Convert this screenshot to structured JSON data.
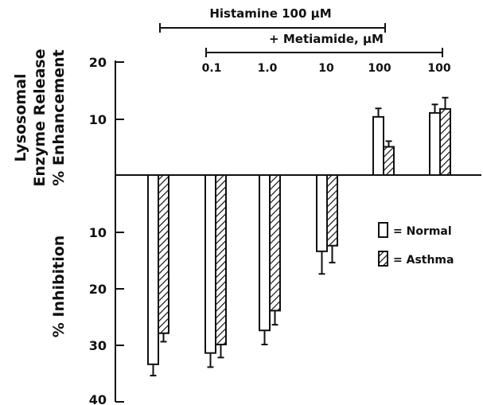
{
  "chart_data": {
    "type": "bar",
    "orientation": "vertical",
    "baseline": 0,
    "y_direction": "enhancement positive (up), inhibition negative (down)",
    "enhancement_ticks": [
      "20",
      "10"
    ],
    "inhibition_ticks": [
      "10",
      "20",
      "30",
      "40"
    ],
    "ylim": [
      -40,
      20
    ],
    "ylabel_top": [
      "Lysosomal",
      "Enzyme Release",
      "% Enhancement"
    ],
    "ylabel_bottom": "% Inhibition",
    "bracket_histamine": "Histamine  100 μM",
    "bracket_metiamide": "+ Metiamide, μM",
    "metiamide_labels": [
      "",
      "0.1",
      "1.0",
      "10",
      "100",
      "100"
    ],
    "groups": 6,
    "series": [
      {
        "name": "Normal",
        "values": [
          -33.5,
          -31.5,
          -27.5,
          -13.5,
          10.3,
          11
        ],
        "errors": [
          2,
          2.5,
          2.5,
          4,
          1.5,
          1.5
        ]
      },
      {
        "name": "Asthma",
        "values": [
          -28,
          -30,
          -24,
          -12.5,
          5,
          11.7
        ],
        "errors": [
          1.5,
          2.3,
          2.5,
          3,
          1,
          2
        ]
      }
    ],
    "legend": {
      "position": "right",
      "items": [
        "= Normal",
        "= Asthma"
      ]
    },
    "colors": {
      "normal_fill": "#ffffff",
      "asthma_hatch": "#111111",
      "stroke": "#111111"
    }
  }
}
